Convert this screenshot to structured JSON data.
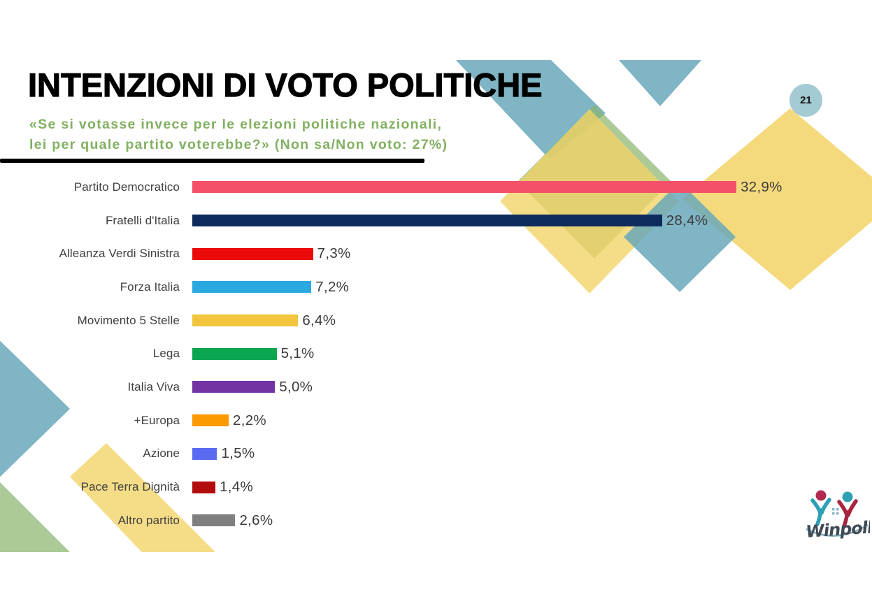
{
  "slide": {
    "number": "21"
  },
  "header": {
    "title": "INTENZIONI DI VOTO POLITICHE",
    "subtitle_line1": "«Se si votasse invece per le elezioni politiche nazionali,",
    "subtitle_line2": "lei per quale partito voterebbe?» (Non sa/Non voto: 27%)",
    "subtitle_color": "#82B061"
  },
  "chart_data": {
    "type": "bar",
    "orientation": "horizontal",
    "title": "INTENZIONI DI VOTO POLITICHE",
    "question": "«Se si votasse invece per le elezioni politiche nazionali, lei per quale partito voterebbe?»",
    "note": "Non sa/Non voto: 27%",
    "categories": [
      "Partito Democratico",
      "Fratelli d'Italia",
      "Alleanza Verdi Sinistra",
      "Forza Italia",
      "Movimento 5 Stelle",
      "Lega",
      "Italia Viva",
      "+Europa",
      "Azione",
      "Pace Terra Dignità",
      "Altro partito"
    ],
    "values": [
      32.9,
      28.4,
      7.3,
      7.2,
      6.4,
      5.1,
      5.0,
      2.2,
      1.5,
      1.4,
      2.6
    ],
    "value_labels": [
      "32,9%",
      "28,4%",
      "7,3%",
      "7,2%",
      "6,4%",
      "5,1%",
      "5,0%",
      "2,2%",
      "1,5%",
      "1,4%",
      "2,6%"
    ],
    "bar_colors": [
      "#F4506A",
      "#0E2B5E",
      "#EC0B0B",
      "#29A9E0",
      "#F1C63E",
      "#0AA650",
      "#7333A3",
      "#FB9900",
      "#5A6BF2",
      "#B30C0C",
      "#7F7F7F"
    ],
    "value_suffix": "%",
    "xlim": [
      0,
      35
    ],
    "grid": false,
    "value_labels_position": "end-of-bar",
    "label_color": "#3F3F3F"
  },
  "logo": {
    "brand": "Winpoll"
  },
  "decor": {
    "teal": "#68A8BA",
    "sage": "#8CB570",
    "yellow": "#F2D366",
    "circle": "#A4CBD4",
    "logo_red": "#B12A4D",
    "logo_teal": "#2F9FB5",
    "logo_text": "#3E4A55",
    "logo_swoosh": "#7FA9BD"
  }
}
